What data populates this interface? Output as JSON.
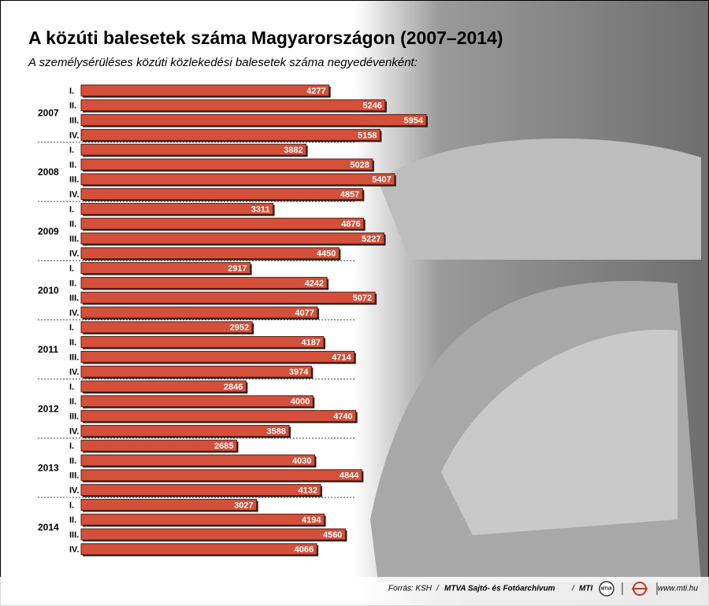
{
  "chart_data": {
    "type": "bar",
    "orientation": "horizontal",
    "title": "A közúti balesetek száma Magyarországon (2007–2014)",
    "subtitle": "A személysérüléses közúti közlekedési balesetek száma negyedévenként:",
    "color": "#d4503a",
    "groups": [
      {
        "name": "2007",
        "categories": [
          "I.",
          "II.",
          "III.",
          "IV."
        ],
        "values": [
          4277,
          5246,
          5954,
          5158
        ]
      },
      {
        "name": "2008",
        "categories": [
          "I.",
          "II.",
          "III.",
          "IV."
        ],
        "values": [
          3882,
          5028,
          5407,
          4857
        ]
      },
      {
        "name": "2009",
        "categories": [
          "I.",
          "II.",
          "III.",
          "IV."
        ],
        "values": [
          3311,
          4876,
          5227,
          4450
        ]
      },
      {
        "name": "2010",
        "categories": [
          "I.",
          "II.",
          "III.",
          "IV."
        ],
        "values": [
          2917,
          4242,
          5072,
          4077
        ]
      },
      {
        "name": "2011",
        "categories": [
          "I.",
          "II.",
          "III.",
          "IV."
        ],
        "values": [
          2952,
          4187,
          4714,
          3974
        ]
      },
      {
        "name": "2012",
        "categories": [
          "I.",
          "II.",
          "III.",
          "IV."
        ],
        "values": [
          2846,
          4000,
          4740,
          3588
        ]
      },
      {
        "name": "2013",
        "categories": [
          "I.",
          "II.",
          "III.",
          "IV."
        ],
        "values": [
          2685,
          4030,
          4844,
          4132
        ]
      },
      {
        "name": "2014",
        "categories": [
          "I.",
          "II.",
          "III.",
          "IV."
        ],
        "values": [
          3027,
          4194,
          4560,
          4066
        ]
      }
    ],
    "source": {
      "label": "Forrás: KSH",
      "org": "MTVA Sajtó- és Fotóarchívum",
      "agency": "MTI",
      "logo": "MTVA",
      "url": "www.mti.hu"
    }
  }
}
